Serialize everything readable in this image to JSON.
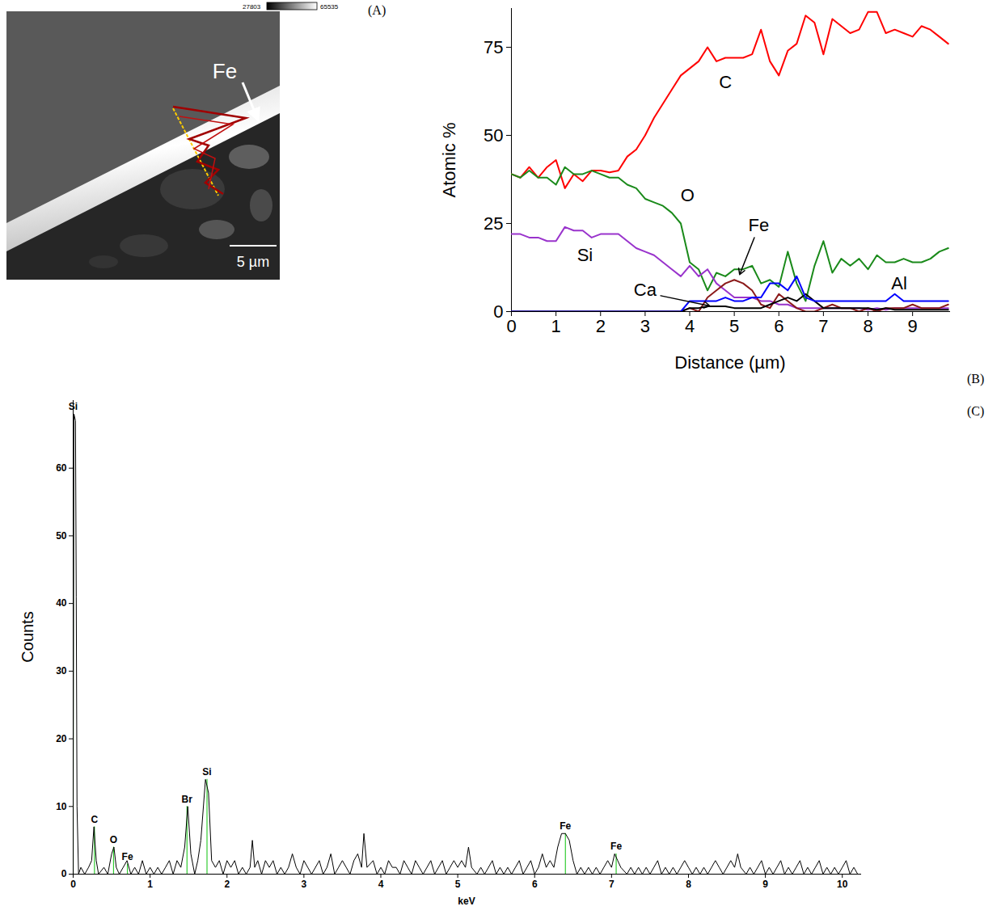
{
  "panel_a": {
    "panel": "(A)",
    "annotation": "Fe",
    "scale_bar": "5 µm",
    "colorbar_range": [
      27803,
      65535
    ]
  },
  "chart_data": [
    {
      "type": "line",
      "panel": "(B)",
      "x_label": "Distance (µm)",
      "y_label": "Atomic %",
      "x": [
        0,
        0.2,
        0.4,
        0.6,
        0.8,
        1.0,
        1.2,
        1.4,
        1.6,
        1.8,
        2.0,
        2.2,
        2.4,
        2.6,
        2.8,
        3.0,
        3.2,
        3.4,
        3.6,
        3.8,
        4.0,
        4.2,
        4.4,
        4.6,
        4.8,
        5.0,
        5.2,
        5.4,
        5.6,
        5.8,
        6.0,
        6.2,
        6.4,
        6.6,
        6.8,
        7.0,
        7.2,
        7.4,
        7.6,
        7.8,
        8.0,
        8.2,
        8.4,
        8.6,
        8.8,
        9.0,
        9.2,
        9.4,
        9.6,
        9.8
      ],
      "series": [
        {
          "name": "C",
          "color": "#ff0000",
          "values": [
            39,
            38,
            41,
            38,
            41,
            43,
            35,
            39,
            37,
            40,
            40,
            39.5,
            40,
            44,
            46,
            50,
            55,
            59,
            63,
            67,
            69,
            71,
            75,
            71,
            72,
            72,
            72,
            73,
            80,
            71,
            67,
            74,
            76,
            84,
            82,
            73,
            83,
            81,
            79,
            80,
            85,
            85,
            79,
            80,
            79,
            78,
            81,
            80,
            78,
            76
          ]
        },
        {
          "name": "O",
          "color": "#1a8a1a",
          "values": [
            39,
            38,
            40,
            38,
            38,
            36,
            41,
            39,
            39,
            40,
            39,
            38,
            38,
            36,
            35,
            32,
            31,
            30,
            28,
            25,
            14,
            12,
            6,
            11,
            10,
            12,
            12,
            13,
            8,
            9,
            7,
            17,
            8,
            3,
            13,
            20,
            11,
            15,
            13,
            15,
            12,
            16,
            14,
            14,
            15,
            14,
            14,
            15,
            17,
            18
          ]
        },
        {
          "name": "Si",
          "color": "#9933cc",
          "values": [
            22,
            22,
            21,
            21,
            20,
            20,
            24,
            23,
            23,
            21,
            22,
            22,
            22,
            20,
            18,
            17,
            16,
            14,
            12,
            10,
            13,
            10,
            12,
            8,
            6,
            4,
            4,
            4,
            3,
            3,
            2,
            2,
            1,
            1,
            1,
            1,
            1,
            1,
            1,
            1,
            0.5,
            1,
            0.5,
            1,
            1,
            1,
            1,
            1,
            1,
            1
          ]
        },
        {
          "name": "Fe",
          "color": "#8b1a1a",
          "values": [
            0,
            0,
            0,
            0,
            0,
            0,
            0,
            0,
            0,
            0,
            0,
            0,
            0,
            0,
            0,
            0,
            0,
            0,
            0,
            0,
            1,
            0,
            4,
            6,
            8,
            9,
            8,
            6,
            2,
            1,
            5,
            3,
            1,
            0,
            0,
            1,
            2,
            1,
            1,
            0,
            1,
            0,
            1,
            1,
            1,
            2,
            1,
            1,
            1,
            2
          ]
        },
        {
          "name": "Ca",
          "color": "#000000",
          "values": [
            0,
            0,
            0,
            0,
            0,
            0,
            0,
            0,
            0,
            0,
            0,
            0,
            0,
            0,
            0,
            0,
            0,
            0,
            0,
            0,
            1,
            1,
            1.5,
            1.5,
            1.5,
            1,
            1,
            1,
            1,
            2,
            3,
            4,
            3,
            5,
            3,
            1,
            1,
            1,
            1,
            1,
            1,
            0.5,
            1,
            0.5,
            0.5,
            0.5,
            0.5,
            0.5,
            0.5,
            0.5
          ]
        },
        {
          "name": "Al",
          "color": "#0000ff",
          "values": [
            0,
            0,
            0,
            0,
            0,
            0,
            0,
            0,
            0,
            0,
            0,
            0,
            0,
            0,
            0,
            0,
            0,
            0,
            0,
            0,
            3,
            3,
            3,
            3,
            4,
            3,
            3,
            4,
            4,
            8,
            8,
            6,
            10,
            4,
            3,
            3,
            3,
            3,
            3,
            3,
            3,
            3,
            3,
            5,
            3,
            3,
            3,
            3,
            3,
            3
          ]
        }
      ],
      "xlim": [
        0,
        9.85
      ],
      "ylim": [
        0,
        86
      ],
      "xticks": [
        0,
        1,
        2,
        3,
        4,
        5,
        6,
        7,
        8,
        9
      ],
      "yticks": [
        0,
        25,
        50,
        75
      ],
      "grid": false
    },
    {
      "type": "line",
      "panel": "(C)",
      "x_label": "keV",
      "y_label": "Counts",
      "color": "#000000",
      "x": [
        0,
        0.01,
        0.03,
        0.04,
        0.05,
        0.07,
        0.1,
        0.15,
        0.2,
        0.24,
        0.27,
        0.3,
        0.33,
        0.4,
        0.45,
        0.5,
        0.53,
        0.56,
        0.6,
        0.65,
        0.7,
        0.75,
        0.8,
        0.85,
        0.9,
        0.95,
        1.0,
        1.05,
        1.1,
        1.15,
        1.2,
        1.25,
        1.3,
        1.35,
        1.4,
        1.45,
        1.49,
        1.53,
        1.58,
        1.62,
        1.66,
        1.72,
        1.76,
        1.8,
        1.85,
        1.9,
        1.95,
        2.0,
        2.05,
        2.1,
        2.15,
        2.2,
        2.25,
        2.3,
        2.33,
        2.36,
        2.4,
        2.45,
        2.5,
        2.55,
        2.6,
        2.65,
        2.7,
        2.75,
        2.8,
        2.85,
        2.9,
        2.95,
        3.0,
        3.05,
        3.1,
        3.15,
        3.2,
        3.25,
        3.3,
        3.35,
        3.4,
        3.45,
        3.5,
        3.55,
        3.6,
        3.65,
        3.7,
        3.75,
        3.78,
        3.82,
        3.9,
        3.95,
        4.0,
        4.05,
        4.1,
        4.15,
        4.2,
        4.25,
        4.3,
        4.35,
        4.4,
        4.45,
        4.5,
        4.55,
        4.6,
        4.65,
        4.7,
        4.75,
        4.8,
        4.85,
        4.9,
        4.95,
        5.0,
        5.05,
        5.1,
        5.14,
        5.18,
        5.25,
        5.3,
        5.35,
        5.4,
        5.45,
        5.5,
        5.55,
        5.6,
        5.65,
        5.7,
        5.75,
        5.8,
        5.85,
        5.9,
        5.95,
        6.0,
        6.05,
        6.1,
        6.15,
        6.2,
        6.25,
        6.3,
        6.35,
        6.4,
        6.45,
        6.5,
        6.55,
        6.6,
        6.65,
        6.7,
        6.75,
        6.8,
        6.85,
        6.9,
        6.95,
        7.0,
        7.04,
        7.08,
        7.12,
        7.2,
        7.25,
        7.3,
        7.35,
        7.4,
        7.45,
        7.5,
        7.55,
        7.6,
        7.65,
        7.7,
        7.75,
        7.8,
        7.85,
        7.9,
        7.95,
        8.0,
        8.05,
        8.1,
        8.15,
        8.2,
        8.25,
        8.3,
        8.35,
        8.4,
        8.45,
        8.5,
        8.55,
        8.6,
        8.64,
        8.68,
        8.75,
        8.8,
        8.85,
        8.9,
        8.95,
        9.0,
        9.05,
        9.1,
        9.15,
        9.2,
        9.25,
        9.3,
        9.35,
        9.4,
        9.45,
        9.5,
        9.55,
        9.6,
        9.65,
        9.7,
        9.75,
        9.8,
        9.85,
        9.9,
        9.95,
        10.0,
        10.05,
        10.1,
        10.15,
        10.2
      ],
      "values": [
        10,
        68,
        67,
        41,
        10,
        0,
        1,
        0,
        1,
        2,
        7,
        2,
        0,
        1,
        0,
        3,
        4,
        1,
        0,
        1,
        2,
        0,
        1,
        0,
        2,
        0,
        1,
        0,
        1,
        0,
        1,
        2,
        0,
        2,
        1,
        4,
        10,
        3,
        0,
        2,
        5,
        14,
        12,
        2,
        1,
        2,
        0,
        2,
        1,
        2,
        0,
        1,
        0,
        1,
        5,
        1,
        2,
        0,
        2,
        1,
        2,
        0,
        1,
        0,
        1,
        3,
        1,
        0,
        2,
        1,
        0,
        1,
        2,
        0,
        1,
        3,
        0,
        1,
        2,
        1,
        0,
        2,
        3,
        1,
        6,
        1,
        2,
        0,
        1,
        0,
        2,
        1,
        1,
        0,
        2,
        1,
        0,
        2,
        1,
        0,
        1,
        2,
        0,
        1,
        2,
        0,
        1,
        2,
        1,
        2,
        1,
        4,
        1,
        0,
        1,
        0,
        1,
        2,
        0,
        1,
        0,
        1,
        0,
        1,
        2,
        0,
        1,
        2,
        0,
        1,
        3,
        1,
        2,
        1,
        4,
        6,
        6,
        5,
        2,
        0,
        1,
        0,
        1,
        0,
        1,
        0,
        1,
        2,
        1,
        3,
        2,
        1,
        0,
        1,
        0,
        1,
        0,
        1,
        0,
        1,
        2,
        0,
        1,
        0,
        1,
        0,
        1,
        2,
        1,
        0,
        1,
        0,
        1,
        0,
        1,
        2,
        1,
        0,
        1,
        2,
        1,
        3,
        1,
        0,
        1,
        0,
        1,
        2,
        0,
        1,
        0,
        1,
        2,
        0,
        1,
        0,
        1,
        2,
        0,
        1,
        0,
        1,
        2,
        0,
        1,
        0,
        1,
        0,
        1,
        2,
        0,
        1,
        0
      ],
      "peaks": [
        {
          "label": "Si",
          "x": 0,
          "height": 68
        },
        {
          "label": "C",
          "x": 0.277,
          "height": 7
        },
        {
          "label": "O",
          "x": 0.525,
          "height": 4
        },
        {
          "label": "Fe",
          "x": 0.705,
          "height": 1.5
        },
        {
          "label": "Br",
          "x": 1.48,
          "height": 10
        },
        {
          "label": "Si",
          "x": 1.74,
          "height": 14
        },
        {
          "label": "Fe",
          "x": 6.4,
          "height": 6
        },
        {
          "label": "Fe",
          "x": 7.06,
          "height": 3
        }
      ],
      "xlim": [
        0,
        10.25
      ],
      "ylim": [
        0,
        70
      ],
      "xticks": [
        0,
        1,
        2,
        3,
        4,
        5,
        6,
        7,
        8,
        9,
        10
      ],
      "yticks": [
        0,
        10,
        20,
        30,
        40,
        50,
        60
      ],
      "grid": false
    }
  ]
}
